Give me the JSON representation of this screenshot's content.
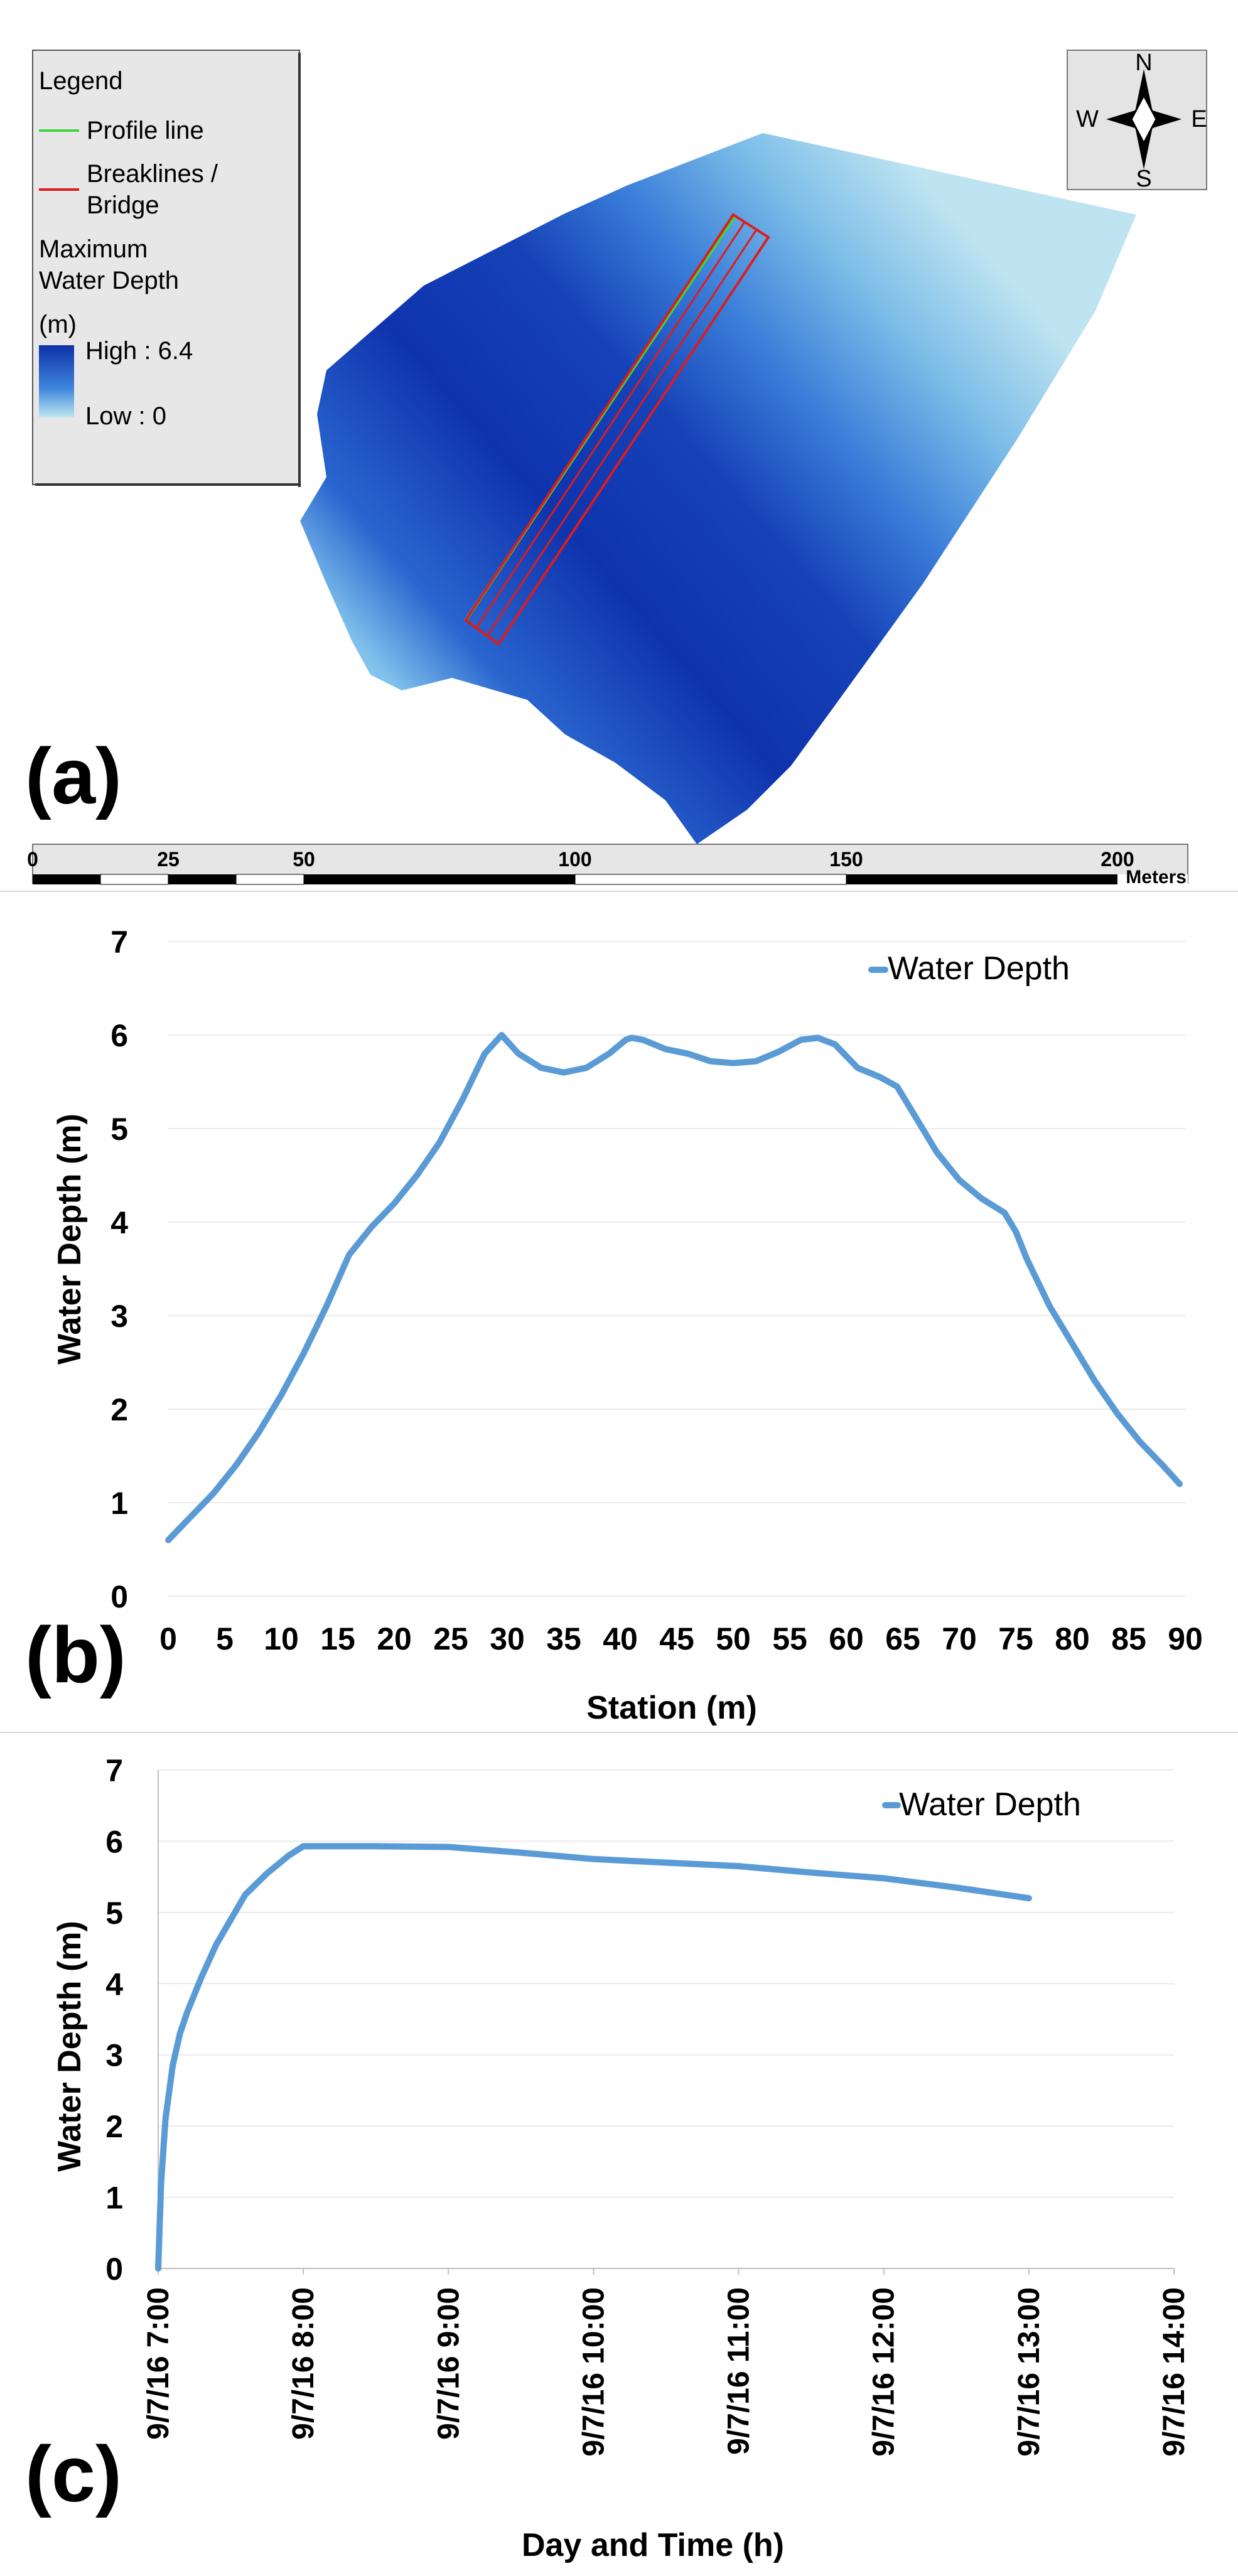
{
  "panels": {
    "a_label": "(a)",
    "b_label": "(b)",
    "c_label": "(c)"
  },
  "map": {
    "legend": {
      "title": "Legend",
      "profile_line": "Profile line",
      "breaklines_line1": "Breaklines /",
      "breaklines_line2": "Bridge",
      "depth_title_line1": "Maximum",
      "depth_title_line2": "Water Depth",
      "depth_unit": "(m)",
      "high": "High : 6.4",
      "low": "Low : 0"
    },
    "compass": {
      "n": "N",
      "s": "S",
      "e": "E",
      "w": "W"
    },
    "scale_bar": {
      "ticks": [
        "0",
        "25",
        "50",
        "100",
        "150",
        "200"
      ],
      "unit": "Meters"
    },
    "colors": {
      "depth_high": "#0d2fa8",
      "depth_low": "#bfe6f0",
      "profile_line": "#3dd63d",
      "breaklines": "#e01b1b"
    }
  },
  "chart_data": [
    {
      "panel": "(b)",
      "type": "line",
      "title": "",
      "xlabel": "Station (m)",
      "ylabel": "Water Depth (m)",
      "xlim": [
        0,
        90
      ],
      "ylim": [
        0,
        7
      ],
      "x_ticks": [
        0,
        5,
        10,
        15,
        20,
        25,
        30,
        35,
        40,
        45,
        50,
        55,
        60,
        65,
        70,
        75,
        80,
        85,
        90
      ],
      "y_ticks": [
        0,
        1,
        2,
        3,
        4,
        5,
        6,
        7
      ],
      "grid": "horizontal",
      "legend": "top-right",
      "series": [
        {
          "name": "Water Depth",
          "color": "#5b9bd5",
          "x": [
            0,
            2,
            4,
            6,
            8,
            10,
            12,
            14,
            16,
            18,
            20,
            22,
            24,
            26,
            28,
            29.5,
            31,
            33,
            35,
            37,
            39,
            40.5,
            41,
            42,
            44,
            46,
            48,
            50,
            52,
            54,
            56,
            57.5,
            59,
            61,
            63,
            64.5,
            66,
            68,
            70,
            72,
            74,
            75,
            76,
            78,
            80,
            82,
            84,
            86,
            88,
            89.5
          ],
          "y": [
            0.6,
            0.85,
            1.1,
            1.4,
            1.75,
            2.15,
            2.6,
            3.1,
            3.65,
            3.95,
            4.2,
            4.5,
            4.85,
            5.3,
            5.8,
            6.0,
            5.8,
            5.65,
            5.6,
            5.65,
            5.8,
            5.95,
            5.97,
            5.95,
            5.85,
            5.8,
            5.72,
            5.7,
            5.72,
            5.82,
            5.95,
            5.97,
            5.9,
            5.65,
            5.55,
            5.45,
            5.15,
            4.75,
            4.45,
            4.25,
            4.1,
            3.9,
            3.6,
            3.1,
            2.7,
            2.3,
            1.95,
            1.65,
            1.4,
            1.2
          ]
        }
      ]
    },
    {
      "panel": "(c)",
      "type": "line",
      "title": "",
      "xlabel": "Day and Time (h)",
      "ylabel": "Water Depth (m)",
      "categories": [
        "9/7/16 7:00",
        "9/7/16 8:00",
        "9/7/16 9:00",
        "9/7/16 10:00",
        "9/7/16 11:00",
        "9/7/16 12:00",
        "9/7/16 13:00",
        "9/7/16 14:00"
      ],
      "xlim": [
        0,
        7
      ],
      "ylim": [
        0,
        7
      ],
      "y_ticks": [
        0,
        1,
        2,
        3,
        4,
        5,
        6,
        7
      ],
      "grid": "horizontal",
      "legend": "top-right",
      "series": [
        {
          "name": "Water Depth",
          "color": "#5b9bd5",
          "x": [
            0,
            0.02,
            0.05,
            0.1,
            0.15,
            0.2,
            0.3,
            0.4,
            0.5,
            0.6,
            0.75,
            0.9,
            1.0,
            1.5,
            2.0,
            2.5,
            3.0,
            3.5,
            4.0,
            4.5,
            5.0,
            5.5,
            6.0
          ],
          "y": [
            0,
            1.2,
            2.1,
            2.85,
            3.3,
            3.6,
            4.1,
            4.55,
            4.9,
            5.25,
            5.55,
            5.8,
            5.93,
            5.93,
            5.92,
            5.84,
            5.75,
            5.7,
            5.65,
            5.56,
            5.48,
            5.35,
            5.2
          ]
        }
      ]
    }
  ]
}
